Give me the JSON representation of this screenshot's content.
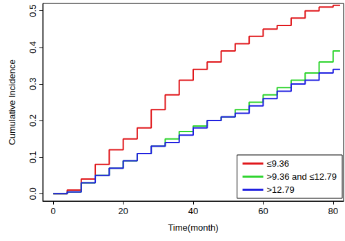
{
  "chart_data": {
    "type": "step",
    "x_label": "Time(month)",
    "y_label": "Cumulative Incidence",
    "x": [
      0,
      4,
      8,
      12,
      16,
      20,
      24,
      28,
      32,
      36,
      40,
      44,
      48,
      52,
      56,
      60,
      64,
      68,
      72,
      76,
      80,
      82
    ],
    "series": [
      {
        "name": "≤9.36",
        "color": "#e0181c",
        "values": [
          0,
          0.01,
          0.04,
          0.08,
          0.12,
          0.15,
          0.18,
          0.23,
          0.27,
          0.31,
          0.34,
          0.36,
          0.39,
          0.41,
          0.43,
          0.45,
          0.46,
          0.48,
          0.5,
          0.51,
          0.515,
          0.515
        ]
      },
      {
        "name": ">9.36 and ≤12.79",
        "color": "#2fd42f",
        "values": [
          0,
          0.005,
          0.03,
          0.05,
          0.07,
          0.09,
          0.11,
          0.13,
          0.15,
          0.17,
          0.185,
          0.2,
          0.21,
          0.23,
          0.25,
          0.27,
          0.29,
          0.31,
          0.33,
          0.36,
          0.39,
          0.39
        ]
      },
      {
        "name": ">12.79",
        "color": "#2020e0",
        "values": [
          0,
          0.005,
          0.03,
          0.05,
          0.07,
          0.09,
          0.11,
          0.13,
          0.14,
          0.16,
          0.18,
          0.2,
          0.21,
          0.22,
          0.24,
          0.26,
          0.28,
          0.3,
          0.31,
          0.33,
          0.34,
          0.34
        ]
      }
    ],
    "xlim": [
      -3,
      83
    ],
    "xticks": [
      0,
      20,
      40,
      60,
      80
    ],
    "ylim": [
      -0.02,
      0.52
    ],
    "yticks": [
      {
        "value": 0,
        "label": "0.0"
      },
      0.1,
      0.2,
      0.3,
      0.4,
      0.5
    ],
    "grid": false,
    "legend": "bottom-right"
  }
}
